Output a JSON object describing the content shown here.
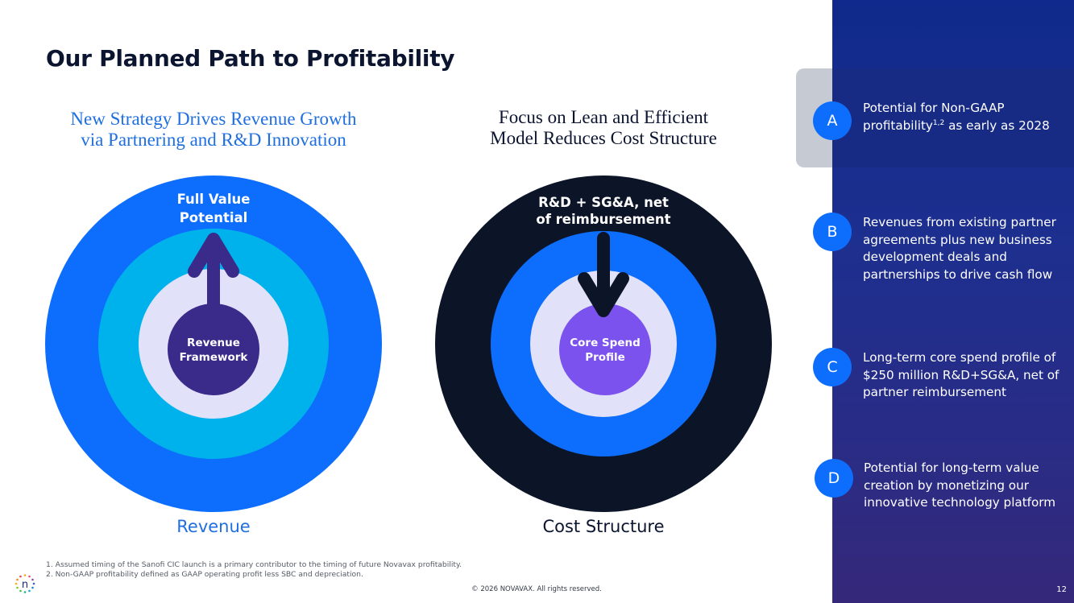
{
  "title": "Our Planned Path to Profitability",
  "left_panel": {
    "heading_line1": "New Strategy Drives Revenue Growth",
    "heading_line2": "via Partnering and R&D Innovation",
    "outer_label_line1": "Full Value",
    "outer_label_line2": "Potential",
    "inner_label_line1": "Revenue",
    "inner_label_line2": "Framework",
    "caption": "Revenue",
    "colors": {
      "outer": "#0d6efd",
      "middle": "#00b2ec",
      "inner": "#e1e1fa",
      "core": "#3a2a8a",
      "arrow": "#3a2a8a"
    }
  },
  "right_panel": {
    "heading_line1": "Focus on Lean and Efficient",
    "heading_line2": "Model Reduces Cost Structure",
    "outer_label_line1": "R&D + SG&A, net",
    "outer_label_line2": "of reimbursement",
    "inner_label_line1": "Core Spend",
    "inner_label_line2": "Profile",
    "caption": "Cost Structure",
    "colors": {
      "outer": "#0c1428",
      "middle": "#0d6efd",
      "inner": "#e1e1fa",
      "core": "#7b52ee",
      "arrow": "#0c1428"
    }
  },
  "sidebar": {
    "items": [
      {
        "letter": "A",
        "text": "Potential for Non-GAAP profitability",
        "superscript": "1,2",
        "text_after": " as early as 2028"
      },
      {
        "letter": "B",
        "text": "Revenues from existing partner agreements plus new business development deals and partnerships to drive cash flow"
      },
      {
        "letter": "C",
        "text": "Long-term core spend profile of $250 million R&D+SG&A, net of partner reimbursement"
      },
      {
        "letter": "D",
        "text": "Potential for long-term value creation by monetizing our innovative technology platform"
      }
    ],
    "badge_color": "#0d6efd"
  },
  "footnotes": [
    "1. Assumed timing of the Sanofi CIC launch is a primary contributor to the timing of future Novavax profitability.",
    "2. Non-GAAP profitability defined as GAAP operating profit less SBC and depreciation."
  ],
  "copyright": "© 2026 NOVAVAX. All rights reserved.",
  "page_number": "12",
  "logo_letter": "n"
}
